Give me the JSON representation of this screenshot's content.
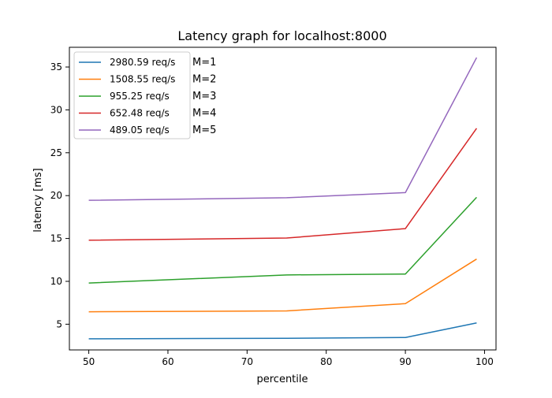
{
  "chart_data": {
    "type": "line",
    "title": "Latency graph for localhost:8000",
    "xlabel": "percentile",
    "ylabel": "latency [ms]",
    "xlim": [
      47.55,
      101.45
    ],
    "ylim": [
      2.0,
      37.3
    ],
    "xticks": [
      50,
      60,
      70,
      80,
      90,
      100
    ],
    "yticks": [
      5,
      10,
      15,
      20,
      25,
      30,
      35
    ],
    "grid": false,
    "legend_position": "top-left",
    "x": [
      50,
      75,
      90,
      99
    ],
    "series": [
      {
        "name": "2980.59 req/s",
        "tag": "M=1",
        "color": "#1f77b4",
        "values": [
          3.3,
          3.35,
          3.45,
          5.15
        ]
      },
      {
        "name": "1508.55 req/s",
        "tag": "M=2",
        "color": "#ff7f0e",
        "values": [
          6.45,
          6.55,
          7.4,
          12.6
        ]
      },
      {
        "name": "955.25 req/s",
        "tag": "M=3",
        "color": "#2ca02c",
        "values": [
          9.8,
          10.75,
          10.85,
          19.8
        ]
      },
      {
        "name": "652.48 req/s",
        "tag": "M=4",
        "color": "#d62728",
        "values": [
          14.8,
          15.05,
          16.15,
          27.85
        ]
      },
      {
        "name": "489.05 req/s",
        "tag": "M=5",
        "color": "#9467bd",
        "values": [
          19.45,
          19.75,
          20.35,
          36.1
        ]
      }
    ]
  }
}
